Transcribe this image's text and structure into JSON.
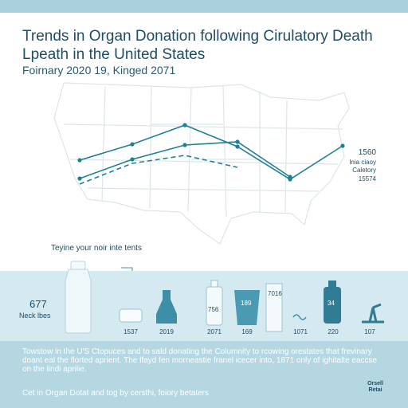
{
  "header": {
    "title": "Trends in Organ Donation following Cirulatory Death Lpeath in the United States",
    "subtitle": "Foirnary 2020 19, Kinged 2071"
  },
  "chart_data": {
    "type": "line",
    "title": "Trends in Organ Donation following Cirulatory Death Lpeath in the United States",
    "subtitle": "Foirnary 2020 19, Kinged 2071",
    "xlabel": "",
    "ylabel": "",
    "series": [
      {
        "style": "solid-upper",
        "values": [
          [
            0,
            59
          ],
          [
            1,
            79
          ],
          [
            2,
            103
          ],
          [
            3,
            76
          ],
          [
            4,
            35
          ],
          [
            5,
            77
          ]
        ]
      },
      {
        "style": "solid-lower",
        "values": [
          [
            0,
            36
          ],
          [
            1,
            60
          ],
          [
            2,
            78
          ],
          [
            3,
            82
          ],
          [
            4,
            38
          ]
        ]
      },
      {
        "style": "dashed",
        "values": [
          [
            0,
            29
          ],
          [
            1,
            55
          ],
          [
            2,
            65
          ],
          [
            3,
            50
          ]
        ]
      }
    ],
    "right_labels": [
      "1560",
      "Inia ciaoy",
      "Caletory",
      "15574"
    ],
    "grid": false,
    "background": "us-map"
  },
  "callout": {
    "text": "Teyine your noir inte tents"
  },
  "stat": {
    "value": "677",
    "label": "Neck lbes"
  },
  "objects": [
    {
      "icon": "bottle-icon",
      "label": "",
      "inner": ""
    },
    {
      "icon": "disc-icon",
      "label": "1537",
      "inner": ""
    },
    {
      "icon": "flask-icon",
      "label": "2019",
      "inner": ""
    },
    {
      "icon": "small-bottle-icon",
      "label": "2071",
      "inner": "756"
    },
    {
      "icon": "cup-icon",
      "label": "169",
      "inner": "189"
    },
    {
      "icon": "tall-box-icon",
      "label": "",
      "inner": "7016"
    },
    {
      "icon": "wave-icon",
      "label": "1071",
      "inner": ""
    },
    {
      "icon": "canister-icon",
      "label": "220",
      "inner": "34"
    },
    {
      "icon": "stand-icon",
      "label": "107",
      "inner": ""
    }
  ],
  "description": "Towstow in the U'S Ctopuces and to sald donating the Columnity to rcowing orestates that frevinary doant eal the florted aprient. The lfayd fen morneastie franel icecer into, 1871 only of ighitalte eaccse on the lindi aprilie.",
  "footer": "Cet in Organ Dotat and tog by cersthi, foiory betaters",
  "logo": "Orsell Retai",
  "colors": {
    "line": "#1e7f96",
    "band": "#d4e9f0",
    "bottom": "#b4d7e2",
    "text": "#1f4d63",
    "map": "#dde5e9"
  }
}
